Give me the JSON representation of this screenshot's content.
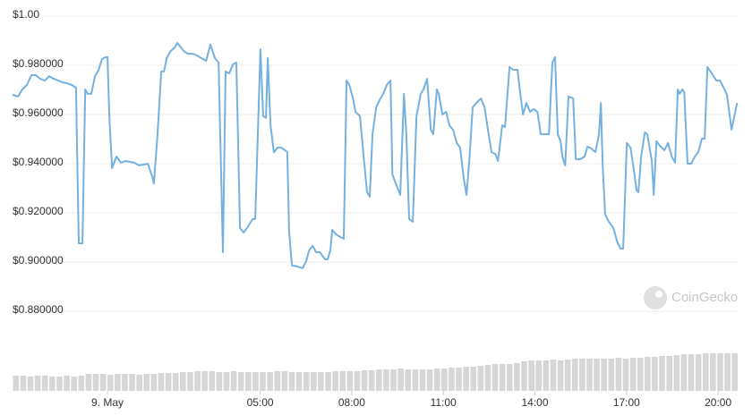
{
  "chart_data": [
    {
      "type": "line",
      "color": "#74b1e0",
      "grid": true,
      "watermark": "CoinGecko",
      "xlim": [
        -3.11,
        20.67
      ],
      "xticks": [
        {
          "value": 0,
          "label": "9. May"
        },
        {
          "value": 5,
          "label": "05:00"
        },
        {
          "value": 8,
          "label": "08:00"
        },
        {
          "value": 11,
          "label": "11:00"
        },
        {
          "value": 14,
          "label": "14:00"
        },
        {
          "value": 17,
          "label": "17:00"
        },
        {
          "value": 20,
          "label": "20:00"
        }
      ],
      "ylim": [
        0.876,
        1.0
      ],
      "yticks": [
        {
          "value": 1.0,
          "label": "$1.00"
        },
        {
          "value": 0.98,
          "label": "$0.980000"
        },
        {
          "value": 0.96,
          "label": "$0.960000"
        },
        {
          "value": 0.94,
          "label": "$0.940000"
        },
        {
          "value": 0.92,
          "label": "$0.920000"
        },
        {
          "value": 0.9,
          "label": "$0.900000"
        },
        {
          "value": 0.88,
          "label": "$0.880000"
        }
      ],
      "x": [
        -3.11,
        -2.93,
        -2.79,
        -2.64,
        -2.49,
        -2.35,
        -2.2,
        -2.05,
        -1.91,
        -1.76,
        -1.61,
        -1.47,
        -1.32,
        -1.17,
        -1.03,
        -0.94,
        -0.82,
        -0.73,
        -0.65,
        -0.53,
        -0.41,
        -0.29,
        -0.18,
        -0.06,
        0.0,
        0.06,
        0.15,
        0.29,
        0.44,
        0.59,
        0.88,
        1.03,
        1.17,
        1.32,
        1.47,
        1.52,
        1.64,
        1.76,
        1.85,
        1.94,
        2.05,
        2.2,
        2.29,
        2.4,
        2.52,
        2.64,
        2.79,
        2.93,
        3.08,
        3.23,
        3.37,
        3.52,
        3.64,
        3.78,
        3.87,
        3.99,
        4.11,
        4.22,
        4.34,
        4.46,
        4.57,
        4.75,
        4.84,
        5.01,
        5.1,
        5.19,
        5.25,
        5.34,
        5.45,
        5.57,
        5.69,
        5.81,
        5.89,
        5.95,
        6.04,
        6.22,
        6.39,
        6.51,
        6.6,
        6.72,
        6.83,
        6.95,
        7.13,
        7.21,
        7.3,
        7.36,
        7.48,
        7.62,
        7.74,
        7.83,
        7.92,
        8.04,
        8.12,
        8.27,
        8.39,
        8.5,
        8.59,
        8.68,
        8.8,
        8.91,
        9.03,
        9.15,
        9.27,
        9.33,
        9.44,
        9.59,
        9.71,
        9.79,
        9.88,
        10.0,
        10.12,
        10.26,
        10.35,
        10.47,
        10.59,
        10.67,
        10.79,
        10.85,
        10.97,
        11.09,
        11.2,
        11.32,
        11.44,
        11.55,
        11.67,
        11.76,
        11.85,
        11.96,
        12.08,
        12.23,
        12.35,
        12.46,
        12.58,
        12.7,
        12.79,
        12.93,
        13.02,
        13.17,
        13.28,
        13.43,
        13.52,
        13.61,
        13.72,
        13.84,
        13.96,
        14.08,
        14.19,
        14.34,
        14.46,
        14.57,
        14.66,
        14.75,
        14.84,
        14.9,
        14.99,
        15.1,
        15.25,
        15.34,
        15.48,
        15.63,
        15.72,
        15.84,
        15.98,
        16.1,
        16.16,
        16.22,
        16.3,
        16.42,
        16.57,
        16.69,
        16.8,
        16.89,
        17.01,
        17.13,
        17.24,
        17.33,
        17.39,
        17.48,
        17.6,
        17.68,
        17.83,
        17.89,
        17.98,
        18.09,
        18.24,
        18.36,
        18.48,
        18.59,
        18.68,
        18.74,
        18.83,
        18.89,
        19.0,
        19.12,
        19.24,
        19.35,
        19.47,
        19.56,
        19.65,
        19.79,
        19.94,
        20.06,
        20.18,
        20.29,
        20.44,
        20.62
      ],
      "values": [
        0.968,
        0.9673,
        0.9702,
        0.972,
        0.976,
        0.976,
        0.9745,
        0.9738,
        0.9756,
        0.9745,
        0.9738,
        0.9731,
        0.9727,
        0.972,
        0.9709,
        0.9076,
        0.9076,
        0.9702,
        0.9684,
        0.9684,
        0.9756,
        0.9782,
        0.9825,
        0.9833,
        0.9833,
        0.9593,
        0.9382,
        0.9429,
        0.9404,
        0.9411,
        0.9404,
        0.9393,
        0.9396,
        0.94,
        0.9346,
        0.932,
        0.952,
        0.9775,
        0.9775,
        0.9829,
        0.9855,
        0.9873,
        0.9891,
        0.9873,
        0.9855,
        0.9847,
        0.9847,
        0.984,
        0.9829,
        0.9818,
        0.9884,
        0.9829,
        0.9811,
        0.904,
        0.9775,
        0.9767,
        0.9804,
        0.9811,
        0.9138,
        0.912,
        0.9138,
        0.9175,
        0.9175,
        0.9865,
        0.9593,
        0.9586,
        0.9829,
        0.9556,
        0.9447,
        0.9465,
        0.9465,
        0.9455,
        0.9447,
        0.912,
        0.8986,
        0.8982,
        0.8975,
        0.9004,
        0.9047,
        0.9066,
        0.904,
        0.904,
        0.9011,
        0.9011,
        0.9047,
        0.9131,
        0.9113,
        0.9102,
        0.9095,
        0.9738,
        0.972,
        0.9665,
        0.9611,
        0.9593,
        0.9429,
        0.9284,
        0.9266,
        0.952,
        0.9629,
        0.9658,
        0.9684,
        0.972,
        0.9738,
        0.9356,
        0.932,
        0.9273,
        0.9684,
        0.952,
        0.9175,
        0.9164,
        0.9593,
        0.9684,
        0.9702,
        0.9745,
        0.9538,
        0.952,
        0.9702,
        0.9684,
        0.96,
        0.9611,
        0.9556,
        0.9538,
        0.9484,
        0.9465,
        0.9338,
        0.9273,
        0.9411,
        0.9629,
        0.9647,
        0.9665,
        0.9629,
        0.9538,
        0.9447,
        0.944,
        0.9411,
        0.9556,
        0.9549,
        0.9793,
        0.9782,
        0.9782,
        0.9684,
        0.96,
        0.9647,
        0.9611,
        0.9622,
        0.9611,
        0.952,
        0.952,
        0.952,
        0.9811,
        0.9833,
        0.952,
        0.9491,
        0.9429,
        0.9393,
        0.9673,
        0.9665,
        0.9418,
        0.9418,
        0.9429,
        0.9469,
        0.9462,
        0.9447,
        0.952,
        0.9647,
        0.9393,
        0.9193,
        0.9164,
        0.9138,
        0.9084,
        0.9055,
        0.9055,
        0.9484,
        0.9465,
        0.9375,
        0.9291,
        0.9284,
        0.9429,
        0.9527,
        0.952,
        0.9411,
        0.9273,
        0.9491,
        0.9473,
        0.9455,
        0.9484,
        0.9429,
        0.9404,
        0.9702,
        0.9684,
        0.9702,
        0.9691,
        0.94,
        0.94,
        0.9429,
        0.9447,
        0.9502,
        0.9502,
        0.9793,
        0.9767,
        0.9738,
        0.9738,
        0.9709,
        0.968,
        0.9538,
        0.9647
      ]
    },
    {
      "type": "bar",
      "color": "#d6d6d6",
      "ylim": [
        0,
        50
      ],
      "values": [
        17,
        17,
        16,
        17,
        17,
        16,
        16,
        17,
        16,
        17,
        19,
        19,
        19,
        18,
        19,
        19,
        19,
        18,
        19,
        19,
        20,
        20,
        20,
        21,
        21,
        22,
        22,
        22,
        21,
        21,
        22,
        21,
        21,
        21,
        21,
        21,
        22,
        22,
        21,
        21,
        21,
        21,
        21,
        21,
        22,
        22,
        22,
        22,
        23,
        23,
        24,
        24,
        24,
        25,
        24,
        24,
        24,
        24,
        25,
        25,
        26,
        26,
        27,
        27,
        28,
        29,
        30,
        30,
        30,
        31,
        33,
        34,
        34,
        34,
        35,
        34,
        35,
        36,
        36,
        36,
        36,
        36,
        36,
        37,
        36,
        37,
        37,
        38,
        38,
        39,
        39,
        40,
        41,
        41,
        41,
        42,
        42,
        42,
        42,
        42
      ]
    }
  ]
}
